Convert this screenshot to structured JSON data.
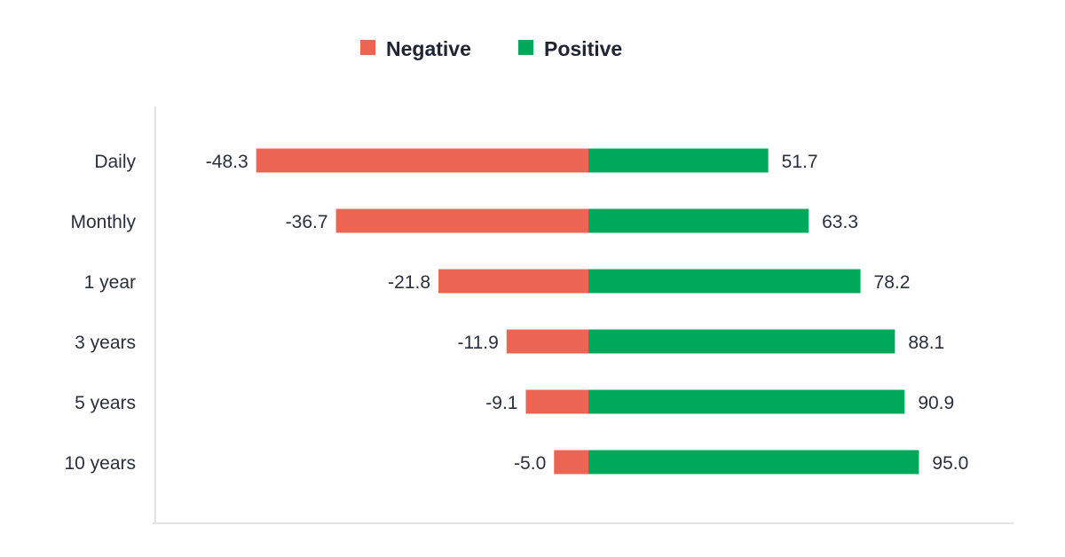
{
  "chart_data": {
    "type": "bar",
    "orientation": "horizontal",
    "stacked": "diverging",
    "categories": [
      "Daily",
      "Monthly",
      "1 year",
      "3 years",
      "5 years",
      "10 years"
    ],
    "series": [
      {
        "name": "Negative",
        "color": "#EC6553",
        "values": [
          -48.3,
          -36.7,
          -21.8,
          -11.9,
          -9.1,
          -5.0
        ],
        "labels": [
          "-48.3",
          "-36.7",
          "-21.8",
          "-11.9",
          "-9.1",
          "-5.0"
        ]
      },
      {
        "name": "Positive",
        "color": "#00A85A",
        "values": [
          51.7,
          63.3,
          78.2,
          88.1,
          90.9,
          95.0
        ],
        "labels": [
          "51.7",
          "63.3",
          "78.2",
          "88.1",
          "90.9",
          "95.0"
        ]
      }
    ],
    "legend": "top-center",
    "grid": false,
    "title": "",
    "xlabel": "",
    "ylabel": ""
  }
}
